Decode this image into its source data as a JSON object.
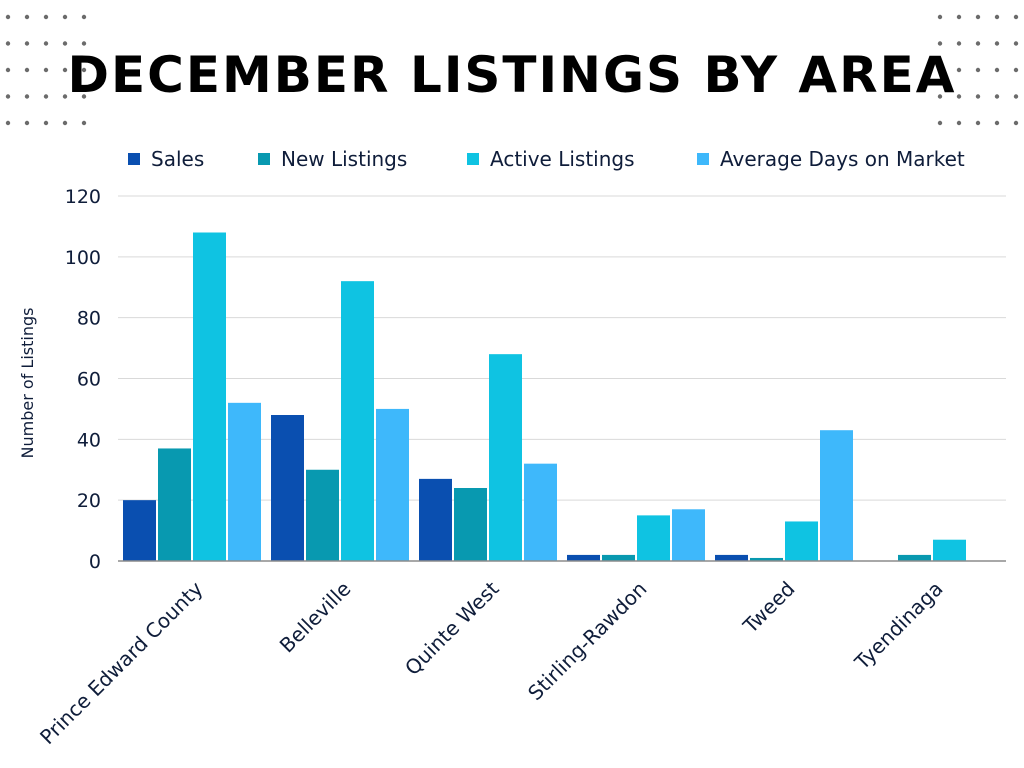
{
  "chart_data": {
    "type": "bar",
    "title": "DECEMBER LISTINGS BY AREA",
    "ylabel": "Number of Listings",
    "xlabel": "",
    "ylim": [
      0,
      120
    ],
    "yticks": [
      0,
      20,
      40,
      60,
      80,
      100,
      120
    ],
    "grid": true,
    "legend_position": "top",
    "categories": [
      "Prince Edward County",
      "Belleville",
      "Quinte West",
      "Stirling-Rawdon",
      "Tweed",
      "Tyendinaga"
    ],
    "series": [
      {
        "name": "Sales",
        "color": "#0a4fb0",
        "values": [
          20,
          48,
          27,
          2,
          2,
          0
        ]
      },
      {
        "name": "New Listings",
        "color": "#0899b0",
        "values": [
          37,
          30,
          24,
          2,
          1,
          2
        ]
      },
      {
        "name": "Active Listings",
        "color": "#0fc3e2",
        "values": [
          108,
          92,
          68,
          15,
          13,
          7
        ]
      },
      {
        "name": "Average Days on Market",
        "color": "#3eb8fb",
        "values": [
          52,
          50,
          32,
          17,
          43,
          0
        ]
      }
    ]
  }
}
